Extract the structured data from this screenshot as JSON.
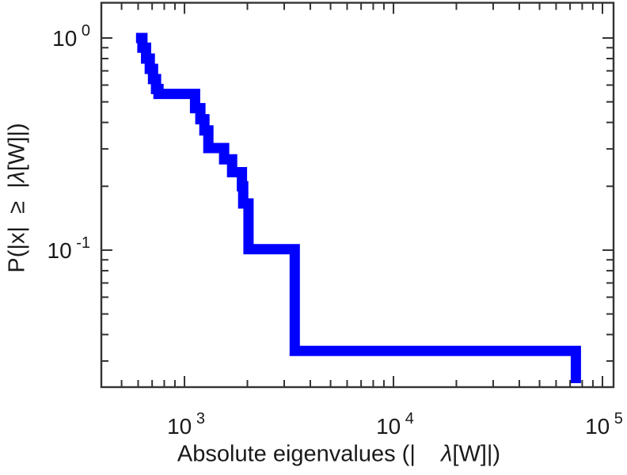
{
  "labels": {
    "x": {
      "pre": "Absolute eigenvalues (|    ",
      "lambda": "λ",
      "post": "[W]|)"
    },
    "y": {
      "pre": "P(|x|  ≥  |",
      "lambda": "λ",
      "post": "[W]|)"
    }
  },
  "chart_data": {
    "type": "line",
    "subtype": "step-ccdf-staircase",
    "title": "",
    "xlabel": "Absolute eigenvalues (|    λ[W]|)",
    "ylabel": "P(|x|  ≥  |λ[W]|)",
    "x_scale": "log",
    "y_scale": "log",
    "xlim": [
      400,
      113000
    ],
    "ylim": [
      0.0226,
      1.466
    ],
    "grid": false,
    "legend": "none",
    "tick_base": "10",
    "x_major_ticks": [
      {
        "value": 1000,
        "exp": "3"
      },
      {
        "value": 10000,
        "exp": "4"
      },
      {
        "value": 100000,
        "exp": "5"
      }
    ],
    "x_minor_ticks": [
      500,
      600,
      700,
      800,
      900,
      2000,
      3000,
      4000,
      5000,
      6000,
      7000,
      8000,
      9000,
      20000,
      30000,
      40000,
      50000,
      60000,
      70000,
      80000,
      90000
    ],
    "y_major_ticks": [
      {
        "value": 1,
        "exp": "0"
      },
      {
        "value": 0.1,
        "exp": "-1"
      }
    ],
    "y_minor_ticks": [
      0.9,
      0.8,
      0.7,
      0.6,
      0.5,
      0.4,
      0.3,
      0.2,
      0.09,
      0.08,
      0.07,
      0.06,
      0.05,
      0.04,
      0.03
    ],
    "series": [
      {
        "name": "eigenvalue-ccdf",
        "color": "#0000FF",
        "line_width": 13,
        "points": [
          [
            586,
            1.0
          ],
          [
            629,
            1.0
          ],
          [
            629,
            0.9
          ],
          [
            655,
            0.9
          ],
          [
            655,
            0.8
          ],
          [
            682,
            0.8
          ],
          [
            682,
            0.715
          ],
          [
            707,
            0.715
          ],
          [
            707,
            0.64
          ],
          [
            731,
            0.64
          ],
          [
            731,
            0.575
          ],
          [
            751,
            0.575
          ],
          [
            751,
            0.545
          ],
          [
            1124,
            0.545
          ],
          [
            1124,
            0.467
          ],
          [
            1191,
            0.467
          ],
          [
            1191,
            0.414
          ],
          [
            1245,
            0.414
          ],
          [
            1245,
            0.367
          ],
          [
            1301,
            0.367
          ],
          [
            1301,
            0.303
          ],
          [
            1548,
            0.303
          ],
          [
            1548,
            0.268
          ],
          [
            1690,
            0.268
          ],
          [
            1690,
            0.233
          ],
          [
            1883,
            0.233
          ],
          [
            1883,
            0.2
          ],
          [
            1910,
            0.2
          ],
          [
            1910,
            0.166
          ],
          [
            2025,
            0.166
          ],
          [
            2025,
            0.101
          ],
          [
            3370,
            0.101
          ],
          [
            3370,
            0.0335
          ],
          [
            74600,
            0.0335
          ],
          [
            74600,
            0.0236
          ]
        ]
      }
    ],
    "colors": {
      "line": "#0000FF",
      "axes": "#333333",
      "text": "#1a1a1a",
      "background": "#ffffff"
    }
  }
}
